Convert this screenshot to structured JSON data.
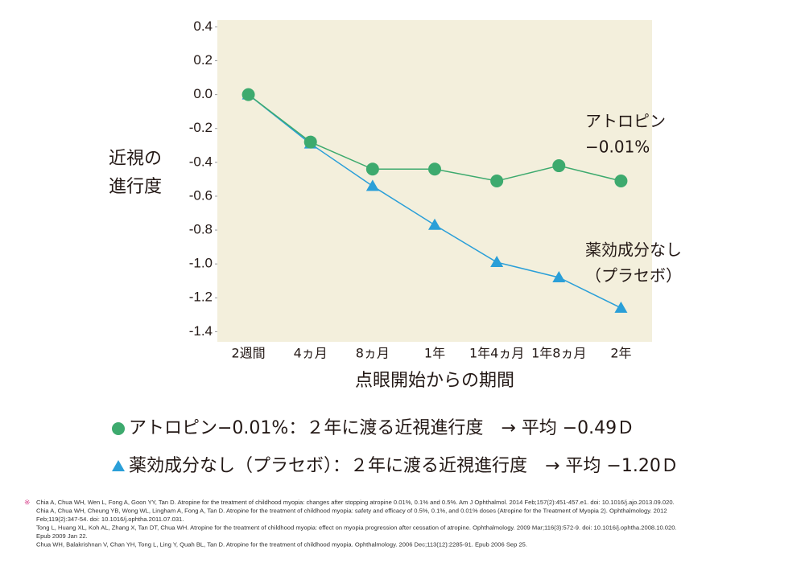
{
  "chart_data": {
    "type": "line",
    "ylabel": [
      "近視の",
      "進行度"
    ],
    "xlabel": "点眼開始からの期間",
    "categories": [
      "2週間",
      "4ヵ月",
      "8ヵ月",
      "1年",
      "1年4ヵ月",
      "1年8ヵ月",
      "2年"
    ],
    "series": [
      {
        "name": "アトロピン−0.01%：２年に渡る近視進行度　→ 平均 −0.49Ｄ",
        "color": "#3daa6e",
        "marker": "circle",
        "values": [
          0.0,
          -0.28,
          -0.44,
          -0.44,
          -0.51,
          -0.42,
          -0.51
        ]
      },
      {
        "name": "薬効成分なし（プラセボ）：２年に渡る近視進行度　→ 平均 −1.20Ｄ",
        "color": "#2a9fd8",
        "marker": "triangle",
        "values": [
          0.0,
          -0.29,
          -0.54,
          -0.77,
          -0.99,
          -1.08,
          -1.26
        ]
      }
    ],
    "annotations": [
      [
        "アトロピン",
        "−0.01%"
      ],
      [
        "薬効成分なし",
        "（プラセボ）"
      ]
    ],
    "ylim": [
      -1.46,
      0.44
    ],
    "yticks": [
      0.4,
      0.2,
      {
        "value": 0,
        "label": "0.0"
      },
      -0.2,
      -0.4,
      -0.6,
      -0.8,
      {
        "value": -1,
        "label": "-1.0"
      },
      -1.2,
      -1.4
    ],
    "background": "#f3efdc"
  },
  "references": {
    "mark": "※",
    "lines": [
      "Chia A, Chua WH, Wen L, Fong A, Goon YY, Tan D. Atropine for the treatment of childhood myopia: changes after stopping atropine 0.01%, 0.1% and 0.5%. Am J Ophthalmol. 2014 Feb;157(2):451-457.e1. doi: 10.1016/j.ajo.2013.09.020.",
      "Chia A, Chua WH, Cheung YB, Wong WL, Lingham A, Fong A, Tan D. Atropine for the treatment of childhood myopia: safety and efficacy of 0.5%, 0.1%, and 0.01% doses (Atropine for the Treatment of Myopia 2). Ophthalmology. 2012",
      "Feb;119(2):347-54. doi: 10.1016/j.ophtha.2011.07.031.",
      "Tong L, Huang XL, Koh AL, Zhang X, Tan DT, Chua WH. Atropine for the treatment of childhood myopia: effect on myopia progression after cessation of atropine. Ophthalmology. 2009 Mar;116(3):572-9. doi: 10.1016/j.ophtha.2008.10.020.",
      "Epub 2009 Jan 22.",
      "Chua WH, Balakrishnan V, Chan YH, Tong L, Ling Y, Quah BL, Tan D. Atropine for the treatment of childhood myopia. Ophthalmology. 2006 Dec;113(12):2285-91. Epub 2006 Sep 25."
    ]
  }
}
